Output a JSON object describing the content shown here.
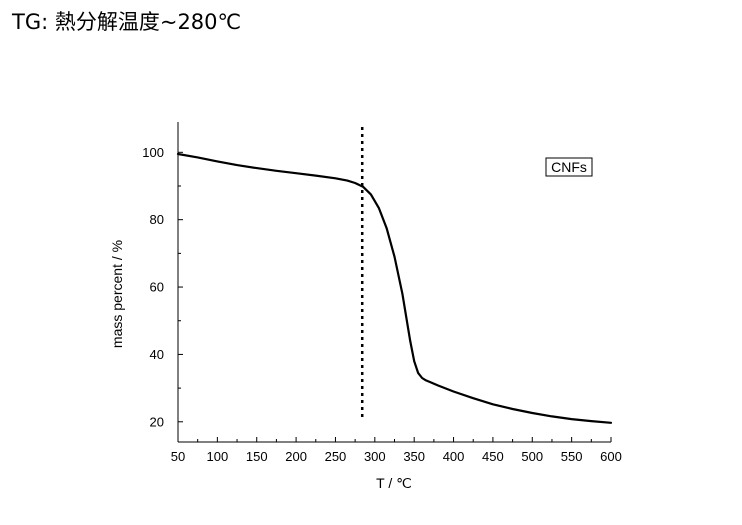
{
  "page": {
    "title": "TG: 熱分解温度~280℃"
  },
  "chart_data": {
    "type": "line",
    "xlabel": "T / ℃",
    "ylabel": "mass percent / %",
    "xlim": [
      50,
      600
    ],
    "ylim": [
      14,
      109
    ],
    "x_ticks": [
      50,
      100,
      150,
      200,
      250,
      300,
      350,
      400,
      450,
      500,
      550,
      600
    ],
    "y_ticks": [
      20,
      40,
      60,
      80,
      100
    ],
    "grid": false,
    "legend": {
      "label": "CNFs",
      "placement": "top-right"
    },
    "series": [
      {
        "name": "CNFs",
        "x": [
          50,
          75,
          100,
          125,
          150,
          175,
          200,
          225,
          250,
          265,
          275,
          285,
          295,
          305,
          315,
          325,
          335,
          340,
          345,
          350,
          355,
          360,
          365,
          370,
          380,
          400,
          425,
          450,
          475,
          500,
          525,
          550,
          575,
          600
        ],
        "y": [
          99.5,
          98.5,
          97.3,
          96.2,
          95.3,
          94.5,
          93.8,
          93.1,
          92.3,
          91.6,
          90.9,
          89.8,
          87.5,
          83.5,
          77.5,
          69.0,
          58.0,
          51.0,
          44.0,
          38.0,
          34.5,
          33.0,
          32.3,
          31.8,
          30.8,
          29.0,
          27.0,
          25.2,
          23.8,
          22.6,
          21.6,
          20.8,
          20.2,
          19.7
        ]
      }
    ],
    "annotations": [
      {
        "type": "vline",
        "x": 284,
        "style": "dotted"
      }
    ]
  }
}
